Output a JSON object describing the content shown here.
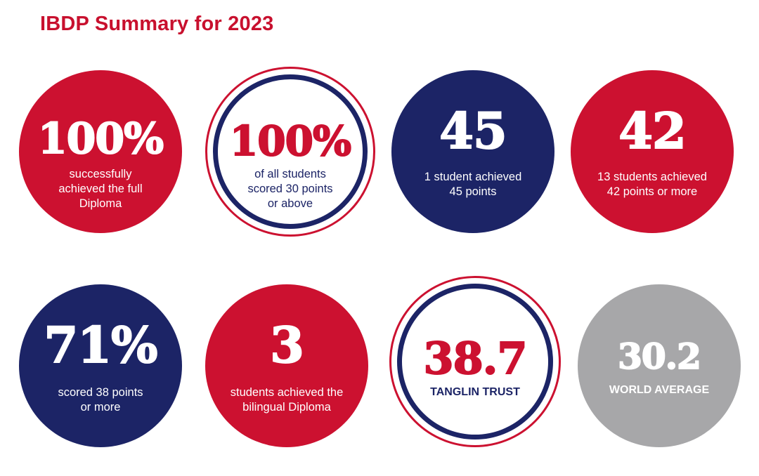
{
  "title": "IBDP Summary for 2023",
  "colors": {
    "red": "#cc1130",
    "navy": "#1c2466",
    "grey": "#a7a7a9"
  },
  "stats": [
    {
      "value": "100%",
      "line1": "successfully",
      "line2": "achieved the full",
      "line3": "Diploma"
    },
    {
      "value": "100%",
      "line1": "of all students",
      "line2": "scored 30 points",
      "line3": "or above"
    },
    {
      "value": "45",
      "line1": "1 student achieved",
      "line2": "45 points"
    },
    {
      "value": "42",
      "line1": "13 students achieved",
      "line2": "42 points or more"
    },
    {
      "value": "71%",
      "line1": "scored 38 points",
      "line2": "or more"
    },
    {
      "value": "3",
      "line1": "students achieved the",
      "line2": "bilingual Diploma"
    },
    {
      "value": "38.7",
      "label": "TANGLIN TRUST"
    },
    {
      "value": "30.2",
      "label": "WORLD AVERAGE"
    }
  ]
}
